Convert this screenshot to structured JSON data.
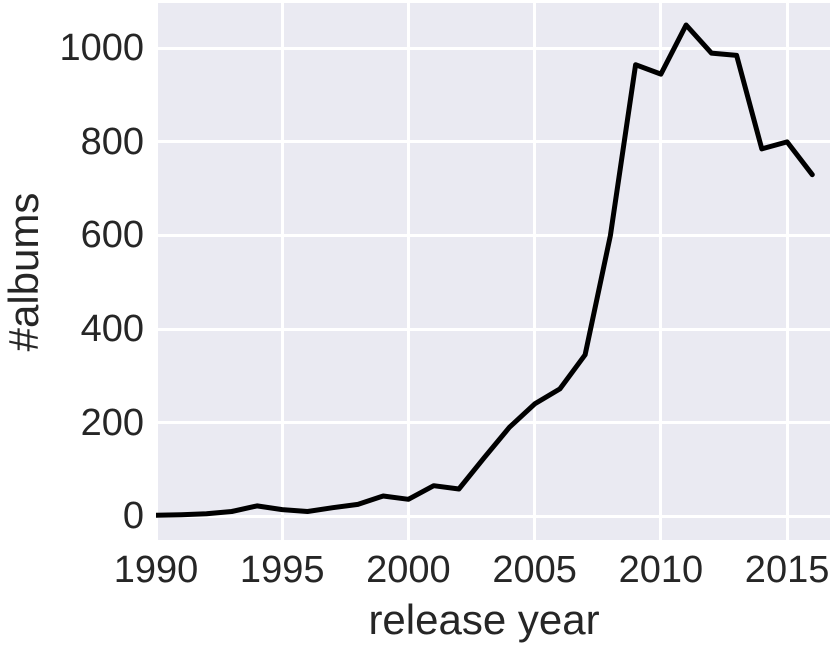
{
  "figure": {
    "background_color": "#ffffff",
    "panel_color": "#eaeaf2",
    "grid_color": "#ffffff",
    "text_color": "#262626",
    "line_color": "#000000"
  },
  "chart_data": {
    "type": "line",
    "title": "",
    "xlabel": "release year",
    "ylabel": "#albums",
    "legend": false,
    "grid": true,
    "x": [
      1990,
      1991,
      1992,
      1993,
      1994,
      1995,
      1996,
      1997,
      1998,
      1999,
      2000,
      2001,
      2002,
      2003,
      2004,
      2005,
      2006,
      2007,
      2008,
      2009,
      2010,
      2011,
      2012,
      2013,
      2014,
      2015,
      2016
    ],
    "y": [
      2,
      3,
      5,
      10,
      22,
      14,
      10,
      18,
      25,
      43,
      36,
      65,
      58,
      125,
      190,
      240,
      272,
      345,
      600,
      965,
      945,
      1050,
      990,
      985,
      785,
      800,
      730
    ],
    "x_ticks": [
      1990,
      1995,
      2000,
      2005,
      2010,
      2015
    ],
    "y_ticks": [
      0,
      200,
      400,
      600,
      800,
      1000
    ],
    "xlim": [
      1990,
      2016.7
    ],
    "ylim": [
      -51,
      1097
    ]
  }
}
